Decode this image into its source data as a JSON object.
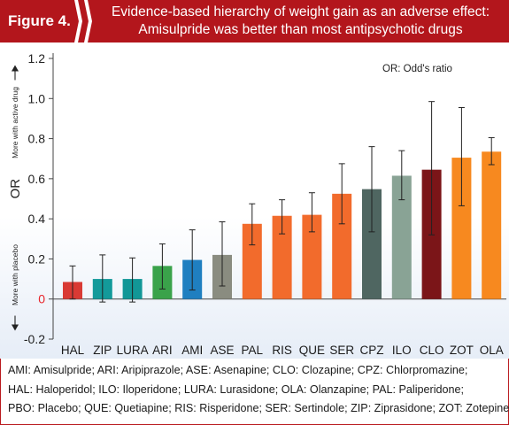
{
  "header": {
    "figure_label": "Figure 4.",
    "title_line1": "Evidence-based hierarchy of weight gain as an adverse effect:",
    "title_line2": "Amisulpride was better than most antipsychotic drugs"
  },
  "chart_data": {
    "type": "bar",
    "ylabel": "OR",
    "y_upper_note": "More with active drug",
    "y_lower_note": "More with placebo",
    "annotation": "OR: Odd's ratio",
    "ylim": [
      -0.2,
      1.2
    ],
    "yticks": [
      "-0.2",
      "0",
      "0.2",
      "0.4",
      "0.6",
      "0.8",
      "1.0",
      "1.2"
    ],
    "ytick_values": [
      -0.2,
      0,
      0.2,
      0.4,
      0.6,
      0.8,
      1.0,
      1.2
    ],
    "zero_tick_color": "#e8262b",
    "categories": [
      "HAL",
      "ZIP",
      "LURA",
      "ARI",
      "AMI",
      "ASE",
      "PAL",
      "RIS",
      "QUE",
      "SER",
      "CPZ",
      "ILO",
      "CLO",
      "ZOT",
      "OLA"
    ],
    "values": [
      0.085,
      0.1,
      0.1,
      0.165,
      0.195,
      0.22,
      0.375,
      0.415,
      0.42,
      0.525,
      0.548,
      0.615,
      0.645,
      0.705,
      0.735
    ],
    "error_low": [
      0.0,
      -0.015,
      -0.015,
      0.05,
      0.045,
      0.065,
      0.27,
      0.325,
      0.335,
      0.375,
      0.335,
      0.495,
      0.32,
      0.465,
      0.67
    ],
    "error_high": [
      0.165,
      0.22,
      0.205,
      0.275,
      0.345,
      0.385,
      0.475,
      0.495,
      0.53,
      0.675,
      0.76,
      0.74,
      0.985,
      0.955,
      0.805
    ],
    "colors": [
      "#d93a34",
      "#139a9a",
      "#129797",
      "#3aa24a",
      "#1f7fc0",
      "#8a8c80",
      "#f26b2c",
      "#f26b2c",
      "#f26b2c",
      "#f26b2c",
      "#4f6661",
      "#89a395",
      "#7b1518",
      "#f7891f",
      "#f7891f"
    ],
    "grid": false
  },
  "legend": {
    "line1": "AMI: Amisulpride; ARI: Aripiprazole; ASE: Asenapine; CLO: Clozapine; CPZ: Chlorpromazine;",
    "line2": "HAL: Haloperidol; ILO: Iloperidone; LURA: Lurasidone; OLA: Olanzapine; PAL: Paliperidone;",
    "line3": "PBO: Placebo; QUE: Quetiapine; RIS: Risperidone; SER: Sertindole; ZIP: Ziprasidone; ZOT: Zotepine"
  }
}
